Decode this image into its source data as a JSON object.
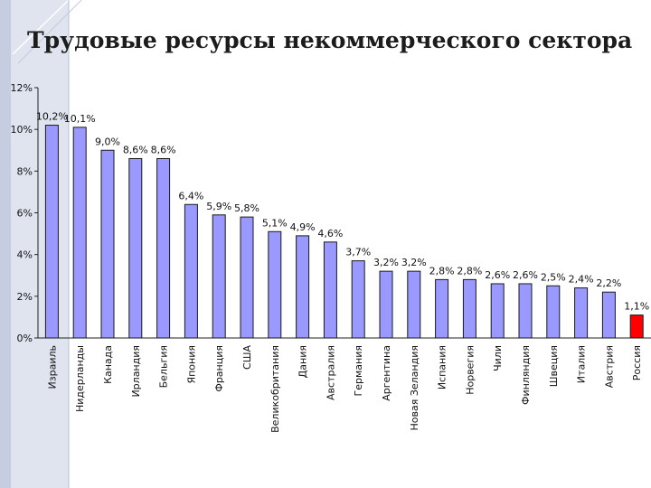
{
  "slide": {
    "title": "Трудовые ресурсы некоммерческого сектора"
  },
  "colors": {
    "bar_fill": "#9999ff",
    "highlight_fill": "#ff0000",
    "bar_stroke": "#1a1a1a",
    "decor_band": "#dfe4ef"
  },
  "chart_data": {
    "type": "bar",
    "title": "Трудовые ресурсы некоммерческого сектора",
    "xlabel": "",
    "ylabel": "",
    "ylim": [
      0,
      12
    ],
    "yticks": [
      0,
      2,
      4,
      6,
      8,
      10,
      12
    ],
    "ytick_labels": [
      "0%",
      "2%",
      "4%",
      "6%",
      "8%",
      "10%",
      "12%"
    ],
    "grid": false,
    "legend": "none",
    "categories": [
      "Израиль",
      "Нидерланды",
      "Канада",
      "Ирландия",
      "Бельгия",
      "Япония",
      "Франция",
      "США",
      "Великобритания",
      "Дания",
      "Австралия",
      "Германия",
      "Аргентина",
      "Новая Зеландия",
      "Испания",
      "Норвегия",
      "Чили",
      "Финляндия",
      "Швеция",
      "Италия",
      "Австрия",
      "Россия"
    ],
    "values": [
      10.2,
      10.1,
      9.0,
      8.6,
      8.6,
      6.4,
      5.9,
      5.8,
      5.1,
      4.9,
      4.6,
      3.7,
      3.2,
      3.2,
      2.8,
      2.8,
      2.6,
      2.6,
      2.5,
      2.4,
      2.2,
      1.1
    ],
    "data_labels": [
      "10,2%",
      "10,1%",
      "9,0%",
      "8,6%",
      "8,6%",
      "6,4%",
      "5,9%",
      "5,8%",
      "5,1%",
      "4,9%",
      "4,6%",
      "3,7%",
      "3,2%",
      "3,2%",
      "2,8%",
      "2,8%",
      "2,6%",
      "2,6%",
      "2,5%",
      "2,4%",
      "2,2%",
      "1,1%"
    ],
    "highlight_category": "Россия"
  }
}
